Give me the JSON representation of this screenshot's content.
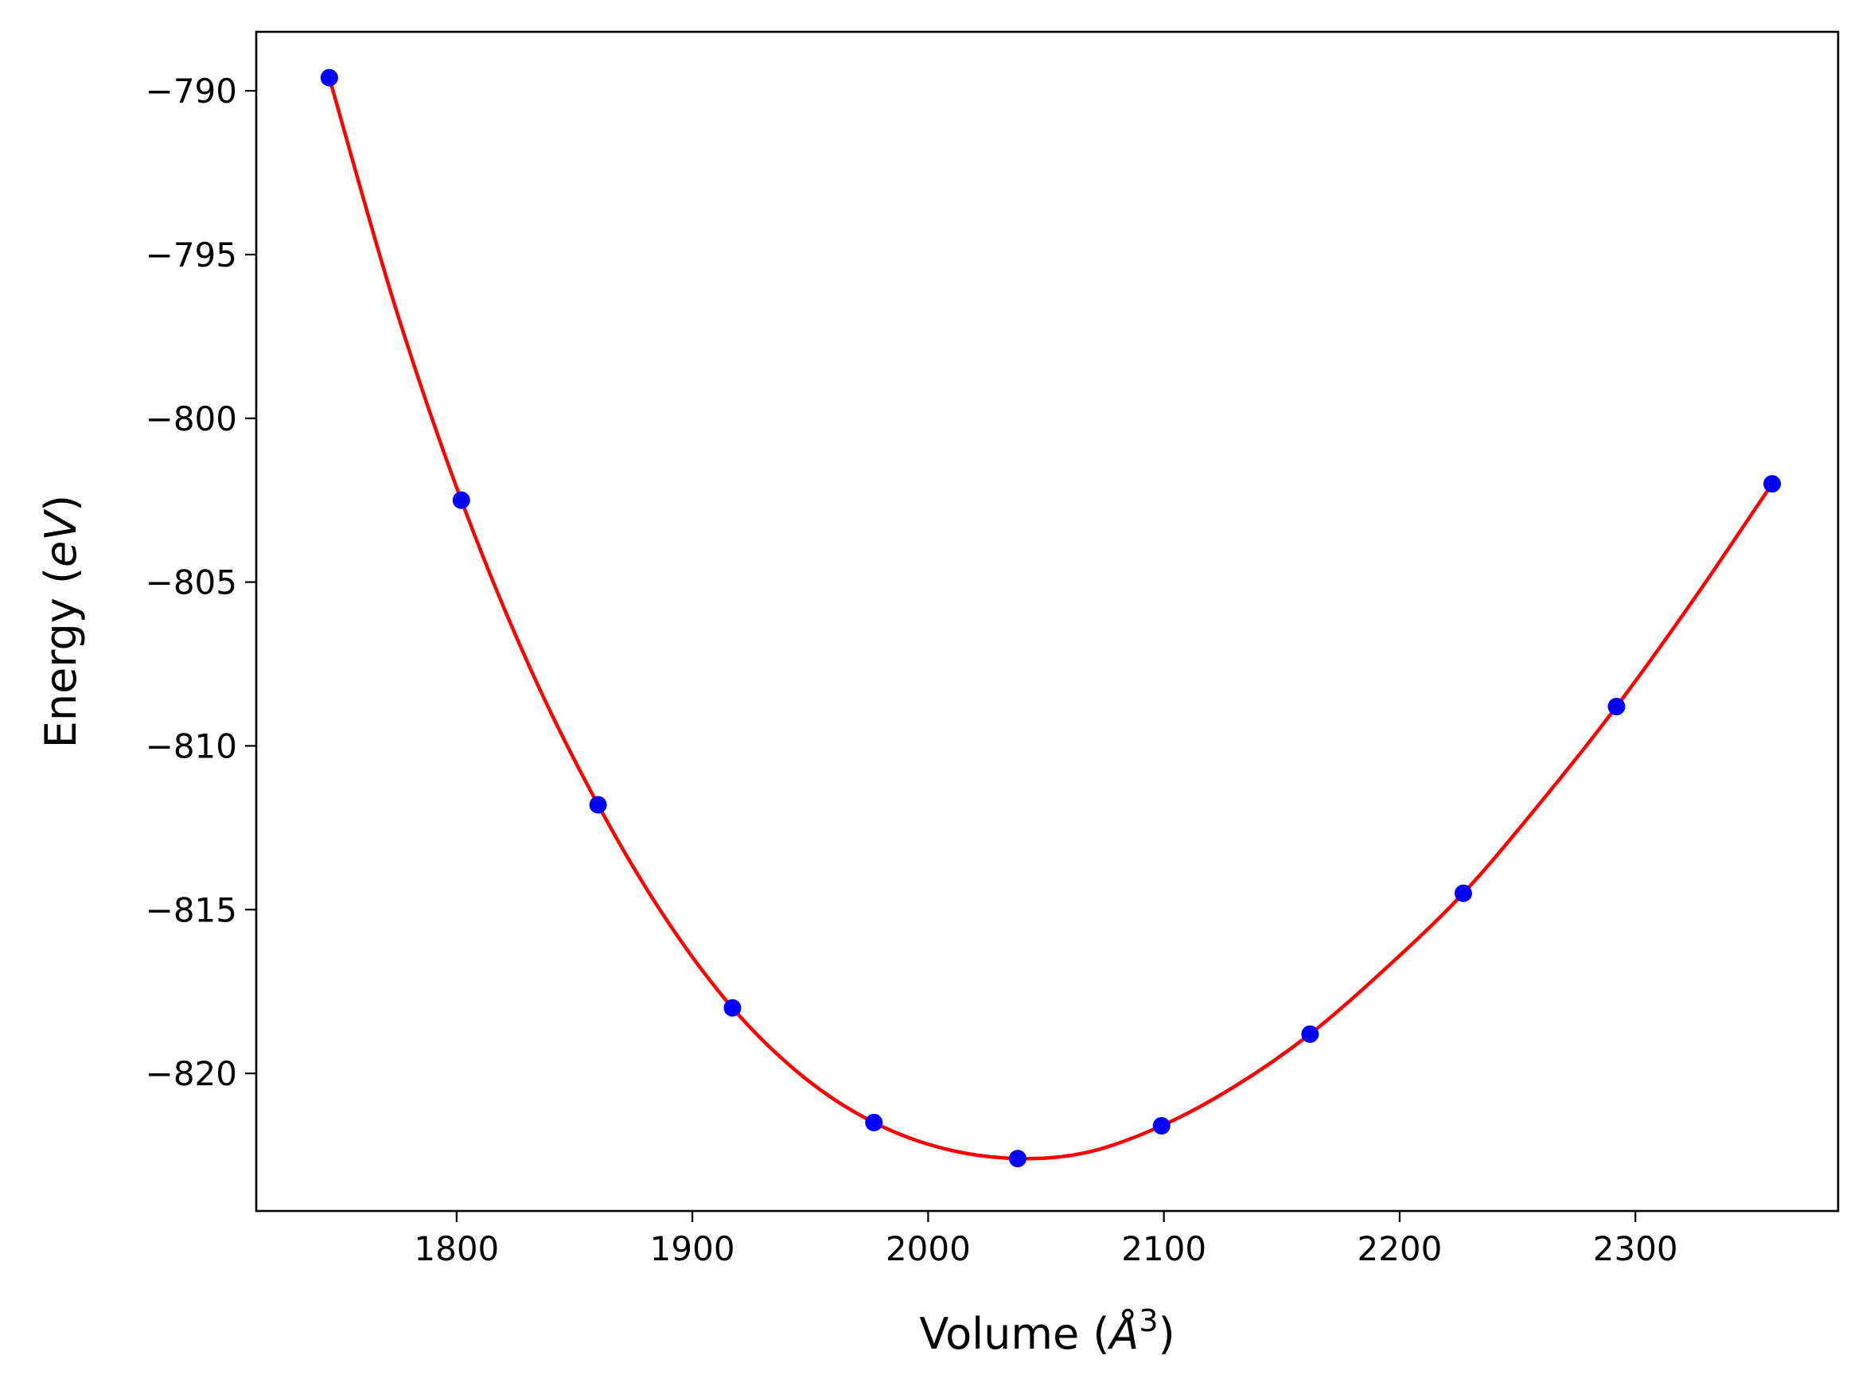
{
  "chart_data": {
    "type": "scatter",
    "title": "",
    "xlabel": {
      "prefix": "Volume (",
      "symbol": "Å",
      "sup": "3",
      "suffix": ")"
    },
    "ylabel": {
      "prefix": "Energy (",
      "unit": "eV",
      "suffix": ")"
    },
    "xlim": [
      1715,
      2386
    ],
    "ylim": [
      -824.2,
      -788.2
    ],
    "x_ticks": [
      1800,
      1900,
      2000,
      2100,
      2200,
      2300
    ],
    "x_tick_labels": [
      "1800",
      "1900",
      "2000",
      "2100",
      "2200",
      "2300"
    ],
    "y_ticks": [
      -790,
      -795,
      -800,
      -805,
      -810,
      -815,
      -820
    ],
    "y_tick_labels": [
      "−790",
      "−795",
      "−800",
      "−805",
      "−810",
      "−815",
      "−820"
    ],
    "grid": false,
    "legend": false,
    "series": [
      {
        "kind": "points",
        "color": "#0000ff",
        "x": [
          1746,
          1802,
          1860,
          1917,
          1977,
          2038,
          2099,
          2162,
          2227,
          2292,
          2358
        ],
        "y": [
          -789.6,
          -802.5,
          -811.8,
          -818.0,
          -821.5,
          -822.6,
          -821.6,
          -818.8,
          -814.5,
          -808.8,
          -802.0
        ]
      },
      {
        "kind": "fit_line",
        "color": "#ff0000",
        "x": [
          1746,
          1774,
          1802,
          1831,
          1860,
          1888,
          1917,
          1947,
          1977,
          2007,
          2038,
          2068,
          2099,
          2130,
          2162,
          2194,
          2227,
          2259,
          2292,
          2325,
          2358
        ],
        "y": [
          -789.6,
          -796.6,
          -802.5,
          -807.6,
          -811.8,
          -815.2,
          -818.0,
          -820.1,
          -821.5,
          -822.3,
          -822.6,
          -822.4,
          -821.6,
          -820.4,
          -818.8,
          -816.8,
          -814.5,
          -811.8,
          -808.8,
          -805.5,
          -802.0
        ]
      }
    ]
  }
}
